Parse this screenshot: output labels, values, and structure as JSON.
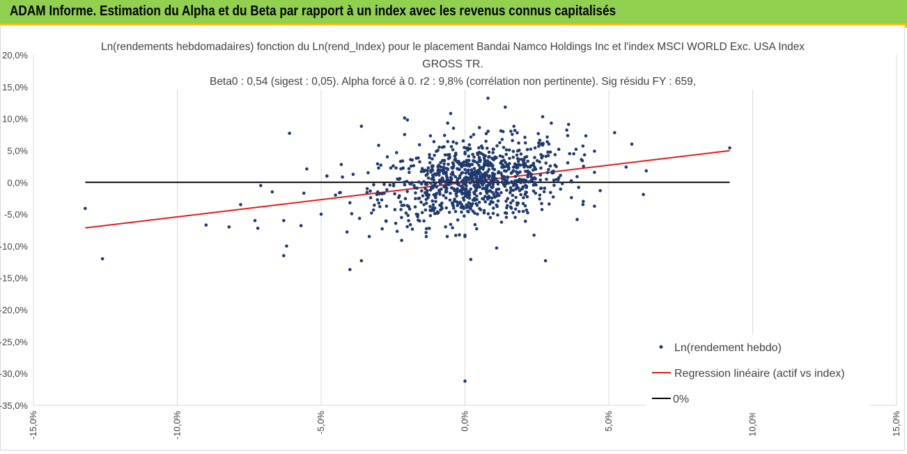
{
  "banner": {
    "title": "ADAM Informe. Estimation du Alpha et du Beta par rapport à un index avec les revenus connus capitalisés"
  },
  "colors": {
    "banner_bg": "#92d050",
    "banner_border": "#ffc000",
    "points": "#1f3a6e",
    "regression": "#e31a1c",
    "zero_line": "#000000",
    "grid": "#d9d9d9"
  },
  "chart_data": {
    "type": "scatter",
    "title_lines": [
      "Ln(rendements hebdomadaires) fonction du Ln(rend_Index) pour le placement Bandai Namco Holdings Inc et l'index MSCI WORLD Exc. USA Index",
      "GROSS TR.",
      "Beta0 : 0,54 (sigest : 0,05). Alpha forcé à 0. r2 : 9,8% (corrélation non pertinente). Sig résidu FY : 659,"
    ],
    "xlim": [
      -0.15,
      0.15
    ],
    "ylim": [
      -0.35,
      0.2
    ],
    "x_ticks": [
      "-15,0%",
      "-10,0%",
      "-5,0%",
      "0,0%",
      "5,0%",
      "10,0%",
      "15,0%"
    ],
    "y_ticks": [
      "20,0%",
      "15,0%",
      "10,0%",
      "5,0%",
      "0,0%",
      "-5,0%",
      "-10,0%",
      "-15,0%",
      "-20,0%",
      "-25,0%",
      "-30,0%",
      "-35,0%"
    ],
    "grid": "vertical",
    "legend_position": "bottom-right",
    "series": [
      {
        "name": "Ln(rendement hebdo)",
        "kind": "points"
      },
      {
        "name": "Regression linéaire (actif vs index)",
        "kind": "line",
        "x": [
          -0.132,
          0.092
        ],
        "y": [
          -0.0715,
          0.0497
        ]
      },
      {
        "name": "0%",
        "kind": "line",
        "x": [
          -0.132,
          0.092
        ],
        "y": [
          0,
          0
        ]
      }
    ],
    "points_outliers": [
      [
        -0.132,
        -0.041
      ],
      [
        -0.126,
        -0.12
      ],
      [
        -0.09,
        -0.067
      ],
      [
        -0.082,
        -0.07
      ],
      [
        -0.078,
        -0.035
      ],
      [
        -0.073,
        -0.06
      ],
      [
        -0.072,
        -0.072
      ],
      [
        -0.071,
        -0.005
      ],
      [
        -0.067,
        -0.015
      ],
      [
        -0.063,
        -0.06
      ],
      [
        -0.062,
        -0.1
      ],
      [
        -0.063,
        -0.115
      ],
      [
        -0.061,
        0.077
      ],
      [
        -0.056,
        -0.017
      ],
      [
        -0.057,
        -0.068
      ],
      [
        -0.055,
        0.021
      ],
      [
        -0.05,
        -0.05
      ],
      [
        -0.048,
        0.01
      ],
      [
        -0.045,
        -0.02
      ],
      [
        -0.043,
        0.028
      ],
      [
        -0.041,
        -0.078
      ],
      [
        -0.04,
        -0.032
      ],
      [
        -0.04,
        -0.137
      ],
      [
        -0.036,
        -0.123
      ],
      [
        -0.036,
        0.088
      ],
      [
        -0.034,
        -0.01
      ],
      [
        -0.03,
        0.058
      ],
      [
        -0.027,
        0.04
      ],
      [
        -0.021,
        0.101
      ],
      [
        -0.02,
        0.098
      ],
      [
        -0.021,
        0.075
      ],
      [
        -0.022,
        -0.091
      ],
      [
        -0.012,
        0.073
      ],
      [
        -0.006,
        0.064
      ],
      [
        -0.005,
        0.108
      ],
      [
        -0.005,
        -0.066
      ],
      [
        0.0,
        -0.083
      ],
      [
        0.002,
        -0.121
      ],
      [
        0.003,
        0.075
      ],
      [
        0.008,
        0.132
      ],
      [
        0.011,
        -0.103
      ],
      [
        0.014,
        0.118
      ],
      [
        0.017,
        0.088
      ],
      [
        0.021,
        0.062
      ],
      [
        0.021,
        -0.061
      ],
      [
        0.024,
        -0.083
      ],
      [
        0.026,
        0.066
      ],
      [
        0.028,
        -0.123
      ],
      [
        0.03,
        0.093
      ],
      [
        0.036,
        0.091
      ],
      [
        0.037,
        -0.024
      ],
      [
        0.041,
        0.057
      ],
      [
        0.041,
        -0.035
      ],
      [
        0.042,
        0.073
      ],
      [
        0.047,
        -0.013
      ],
      [
        0.052,
        0.078
      ],
      [
        0.056,
        0.024
      ],
      [
        0.058,
        0.06
      ],
      [
        0.062,
        -0.019
      ],
      [
        0.063,
        0.018
      ],
      [
        0.092,
        0.054
      ],
      [
        0.0,
        -0.312
      ],
      [
        0.027,
        0.103
      ],
      [
        0.005,
        0.086
      ],
      [
        -0.006,
        0.093
      ]
    ],
    "points_cluster": {
      "count": 900,
      "x_mean": 0.003,
      "x_sd": 0.016,
      "y_sd": 0.031,
      "x_range": [
        -0.048,
        0.045
      ],
      "y_range": [
        -0.085,
        0.085
      ]
    }
  }
}
